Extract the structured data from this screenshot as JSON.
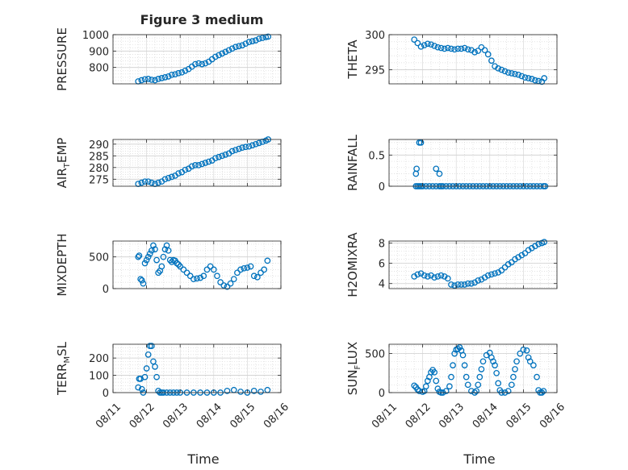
{
  "figure": {
    "title": "Figure 3 medium",
    "xlabel": "Time",
    "x_ticks": [
      "08/11",
      "08/12",
      "08/13",
      "08/14",
      "08/15",
      "08/16"
    ],
    "colors": {
      "marker": "#0072BD",
      "axis": "#262626",
      "grid": "#d9d9d9",
      "background": "#ffffff"
    }
  },
  "chart_data": [
    {
      "type": "scatter",
      "ylabel": "PRESSURE",
      "ylim": [
        700,
        1000
      ],
      "yticks": [
        "800",
        "900",
        "1000"
      ],
      "ytick_values": [
        800,
        900,
        1000
      ],
      "x_range": [
        11.0,
        16.0
      ],
      "grid": true,
      "x": [
        11.75,
        11.85,
        11.95,
        12.05,
        12.15,
        12.25,
        12.35,
        12.45,
        12.55,
        12.65,
        12.75,
        12.85,
        12.95,
        13.05,
        13.15,
        13.25,
        13.35,
        13.45,
        13.55,
        13.65,
        13.75,
        13.85,
        13.95,
        14.05,
        14.15,
        14.25,
        14.35,
        14.45,
        14.55,
        14.65,
        14.75,
        14.85,
        14.95,
        15.05,
        15.15,
        15.25,
        15.35,
        15.45,
        15.55,
        15.62
      ],
      "y": [
        715,
        722,
        728,
        730,
        725,
        722,
        730,
        735,
        740,
        745,
        755,
        758,
        765,
        770,
        780,
        790,
        805,
        820,
        825,
        820,
        825,
        835,
        850,
        865,
        875,
        885,
        895,
        905,
        915,
        925,
        930,
        935,
        945,
        955,
        960,
        965,
        975,
        980,
        985,
        988
      ]
    },
    {
      "type": "scatter",
      "ylabel": "THETA",
      "ylim": [
        293,
        300
      ],
      "yticks": [
        "295",
        "300"
      ],
      "ytick_values": [
        295,
        300
      ],
      "x_range": [
        11.0,
        16.0
      ],
      "grid": true,
      "x": [
        11.75,
        11.85,
        11.95,
        12.05,
        12.15,
        12.25,
        12.35,
        12.45,
        12.55,
        12.65,
        12.75,
        12.85,
        12.95,
        13.05,
        13.15,
        13.25,
        13.35,
        13.45,
        13.55,
        13.65,
        13.75,
        13.85,
        13.95,
        14.05,
        14.15,
        14.25,
        14.35,
        14.45,
        14.55,
        14.65,
        14.75,
        14.85,
        14.95,
        15.05,
        15.15,
        15.25,
        15.35,
        15.45,
        15.55,
        15.62
      ],
      "y": [
        299.3,
        298.8,
        298.3,
        298.5,
        298.7,
        298.6,
        298.4,
        298.2,
        298.1,
        298.0,
        298.1,
        298.0,
        297.9,
        298.0,
        298.0,
        298.1,
        297.9,
        297.8,
        297.5,
        297.7,
        298.2,
        297.8,
        297.2,
        296.3,
        295.5,
        295.2,
        295.0,
        294.8,
        294.6,
        294.5,
        294.4,
        294.3,
        294.1,
        293.9,
        293.8,
        293.7,
        293.5,
        293.4,
        293.3,
        293.8
      ]
    },
    {
      "type": "scatter",
      "ylabel": "AIR_TEMP",
      "ylim": [
        272,
        292
      ],
      "yticks": [
        "275",
        "280",
        "285",
        "290"
      ],
      "ytick_values": [
        275,
        280,
        285,
        290
      ],
      "x_range": [
        11.0,
        16.0
      ],
      "grid": true,
      "x": [
        11.75,
        11.85,
        11.95,
        12.05,
        12.15,
        12.25,
        12.35,
        12.45,
        12.55,
        12.65,
        12.75,
        12.85,
        12.95,
        13.05,
        13.15,
        13.25,
        13.35,
        13.45,
        13.55,
        13.65,
        13.75,
        13.85,
        13.95,
        14.05,
        14.15,
        14.25,
        14.35,
        14.45,
        14.55,
        14.65,
        14.75,
        14.85,
        14.95,
        15.05,
        15.15,
        15.25,
        15.35,
        15.45,
        15.55,
        15.62
      ],
      "y": [
        273,
        273.5,
        274,
        274,
        273.5,
        273,
        273.5,
        274,
        275,
        275.5,
        276,
        276.5,
        277.5,
        278,
        279,
        279.5,
        280.5,
        281,
        281,
        281.5,
        282,
        282.5,
        283,
        284,
        284.5,
        285,
        285.5,
        286,
        287,
        287.5,
        288,
        288.5,
        288.8,
        289,
        289.5,
        290,
        290.5,
        291,
        291.5,
        292
      ]
    },
    {
      "type": "scatter",
      "ylabel": "RAINFALL",
      "ylim": [
        0,
        0.75
      ],
      "yticks": [
        "0",
        "0.5"
      ],
      "ytick_values": [
        0,
        0.5
      ],
      "x_range": [
        11.0,
        16.0
      ],
      "grid": true,
      "x": [
        11.8,
        11.85,
        11.9,
        11.95,
        12.0,
        12.1,
        12.2,
        12.3,
        12.4,
        12.5,
        12.6,
        12.7,
        12.8,
        12.9,
        13.0,
        13.1,
        13.2,
        13.3,
        13.4,
        13.5,
        13.6,
        13.7,
        13.8,
        13.9,
        14.0,
        14.1,
        14.2,
        14.3,
        14.4,
        14.5,
        14.6,
        14.7,
        14.8,
        14.9,
        15.0,
        15.1,
        15.2,
        15.3,
        15.4,
        15.5,
        15.6,
        15.65,
        11.8,
        11.82,
        11.9,
        11.95,
        12.4,
        12.5,
        12.55
      ],
      "y": [
        0,
        0,
        0,
        0,
        0,
        0,
        0,
        0,
        0,
        0,
        0,
        0,
        0,
        0,
        0,
        0,
        0,
        0,
        0,
        0,
        0,
        0,
        0,
        0,
        0,
        0,
        0,
        0,
        0,
        0,
        0,
        0,
        0,
        0,
        0,
        0,
        0,
        0,
        0,
        0,
        0,
        0,
        0.2,
        0.28,
        0.7,
        0.7,
        0.28,
        0.2,
        0.0
      ]
    },
    {
      "type": "scatter",
      "ylabel": "MIXDEPTH",
      "ylim": [
        0,
        750
      ],
      "yticks": [
        "0",
        "500"
      ],
      "ytick_values": [
        0,
        500
      ],
      "x_range": [
        11.0,
        16.0
      ],
      "grid": true,
      "x": [
        11.75,
        11.78,
        11.82,
        11.86,
        11.9,
        11.95,
        12.0,
        12.05,
        12.1,
        12.15,
        12.2,
        12.25,
        12.3,
        12.35,
        12.4,
        12.45,
        12.5,
        12.55,
        12.6,
        12.65,
        12.7,
        12.75,
        12.8,
        12.85,
        12.9,
        12.95,
        13.0,
        13.1,
        13.2,
        13.3,
        13.4,
        13.5,
        13.6,
        13.7,
        13.8,
        13.9,
        14.0,
        14.1,
        14.2,
        14.3,
        14.4,
        14.5,
        14.6,
        14.7,
        14.8,
        14.9,
        15.0,
        15.1,
        15.2,
        15.3,
        15.4,
        15.5,
        15.6
      ],
      "y": [
        500,
        520,
        150,
        130,
        80,
        400,
        450,
        500,
        550,
        600,
        680,
        620,
        450,
        250,
        280,
        350,
        500,
        620,
        680,
        600,
        450,
        420,
        450,
        440,
        400,
        380,
        350,
        300,
        250,
        200,
        150,
        160,
        170,
        200,
        300,
        350,
        300,
        200,
        100,
        50,
        30,
        80,
        150,
        250,
        300,
        320,
        330,
        350,
        200,
        180,
        250,
        300,
        440
      ]
    },
    {
      "type": "scatter",
      "ylabel": "H2OMIXRA",
      "ylim": [
        3.5,
        8.2
      ],
      "yticks": [
        "4",
        "6",
        "8"
      ],
      "ytick_values": [
        4,
        6,
        8
      ],
      "x_range": [
        11.0,
        16.0
      ],
      "grid": true,
      "x": [
        11.75,
        11.85,
        11.95,
        12.05,
        12.15,
        12.25,
        12.35,
        12.45,
        12.55,
        12.65,
        12.75,
        12.85,
        12.95,
        13.05,
        13.15,
        13.25,
        13.35,
        13.45,
        13.55,
        13.65,
        13.75,
        13.85,
        13.95,
        14.05,
        14.15,
        14.25,
        14.35,
        14.45,
        14.55,
        14.65,
        14.75,
        14.85,
        14.95,
        15.05,
        15.15,
        15.25,
        15.35,
        15.45,
        15.55,
        15.62
      ],
      "y": [
        4.7,
        4.9,
        5.0,
        4.8,
        4.7,
        4.8,
        4.6,
        4.7,
        4.8,
        4.7,
        4.5,
        3.9,
        3.8,
        3.9,
        3.9,
        3.9,
        4.0,
        4.0,
        4.1,
        4.3,
        4.4,
        4.6,
        4.8,
        4.9,
        5.0,
        5.1,
        5.3,
        5.6,
        5.9,
        6.1,
        6.4,
        6.6,
        6.8,
        7.0,
        7.3,
        7.5,
        7.7,
        7.9,
        8.0,
        8.1
      ]
    },
    {
      "type": "scatter",
      "ylabel": "TERR_MSL",
      "ylim": [
        0,
        280
      ],
      "yticks": [
        "0",
        "100",
        "200"
      ],
      "ytick_values": [
        0,
        100,
        200
      ],
      "x_range": [
        11.0,
        16.0
      ],
      "grid": true,
      "x": [
        11.75,
        11.78,
        11.82,
        11.86,
        11.9,
        11.95,
        12.0,
        12.05,
        12.1,
        12.15,
        12.2,
        12.25,
        12.3,
        12.35,
        12.4,
        12.45,
        12.5,
        12.6,
        12.7,
        12.8,
        12.9,
        13.0,
        13.2,
        13.4,
        13.6,
        13.8,
        14.0,
        14.2,
        14.4,
        14.6,
        14.8,
        15.0,
        15.2,
        15.4,
        15.6
      ],
      "y": [
        30,
        80,
        80,
        20,
        0,
        90,
        140,
        220,
        270,
        270,
        180,
        150,
        90,
        10,
        0,
        0,
        0,
        0,
        0,
        0,
        0,
        0,
        0,
        0,
        0,
        0,
        0,
        0,
        10,
        15,
        5,
        0,
        10,
        5,
        15
      ]
    },
    {
      "type": "scatter",
      "ylabel": "SUN_FLUX",
      "ylim": [
        0,
        620
      ],
      "yticks": [
        "0",
        "500"
      ],
      "ytick_values": [
        0,
        500
      ],
      "x_range": [
        11.0,
        16.0
      ],
      "grid": true,
      "x": [
        11.75,
        11.8,
        11.85,
        11.9,
        12.0,
        12.05,
        12.1,
        12.15,
        12.2,
        12.25,
        12.3,
        12.35,
        12.4,
        12.45,
        12.5,
        12.55,
        12.6,
        12.7,
        12.8,
        12.85,
        12.9,
        12.95,
        13.0,
        13.05,
        13.1,
        13.15,
        13.2,
        13.25,
        13.3,
        13.35,
        13.45,
        13.55,
        13.6,
        13.65,
        13.7,
        13.75,
        13.8,
        13.9,
        14.0,
        14.05,
        14.1,
        14.15,
        14.2,
        14.25,
        14.3,
        14.35,
        14.45,
        14.55,
        14.65,
        14.7,
        14.75,
        14.8,
        14.9,
        15.0,
        15.1,
        15.15,
        15.2,
        15.3,
        15.4,
        15.45,
        15.5,
        15.55,
        15.6
      ],
      "y": [
        90,
        70,
        40,
        20,
        10,
        20,
        80,
        150,
        200,
        260,
        290,
        260,
        150,
        50,
        10,
        0,
        0,
        20,
        80,
        200,
        350,
        500,
        550,
        560,
        580,
        540,
        480,
        350,
        200,
        100,
        20,
        0,
        20,
        100,
        200,
        300,
        400,
        480,
        510,
        450,
        400,
        350,
        250,
        120,
        30,
        0,
        0,
        20,
        100,
        200,
        300,
        400,
        500,
        550,
        540,
        450,
        400,
        350,
        200,
        30,
        0,
        0,
        20
      ]
    }
  ]
}
